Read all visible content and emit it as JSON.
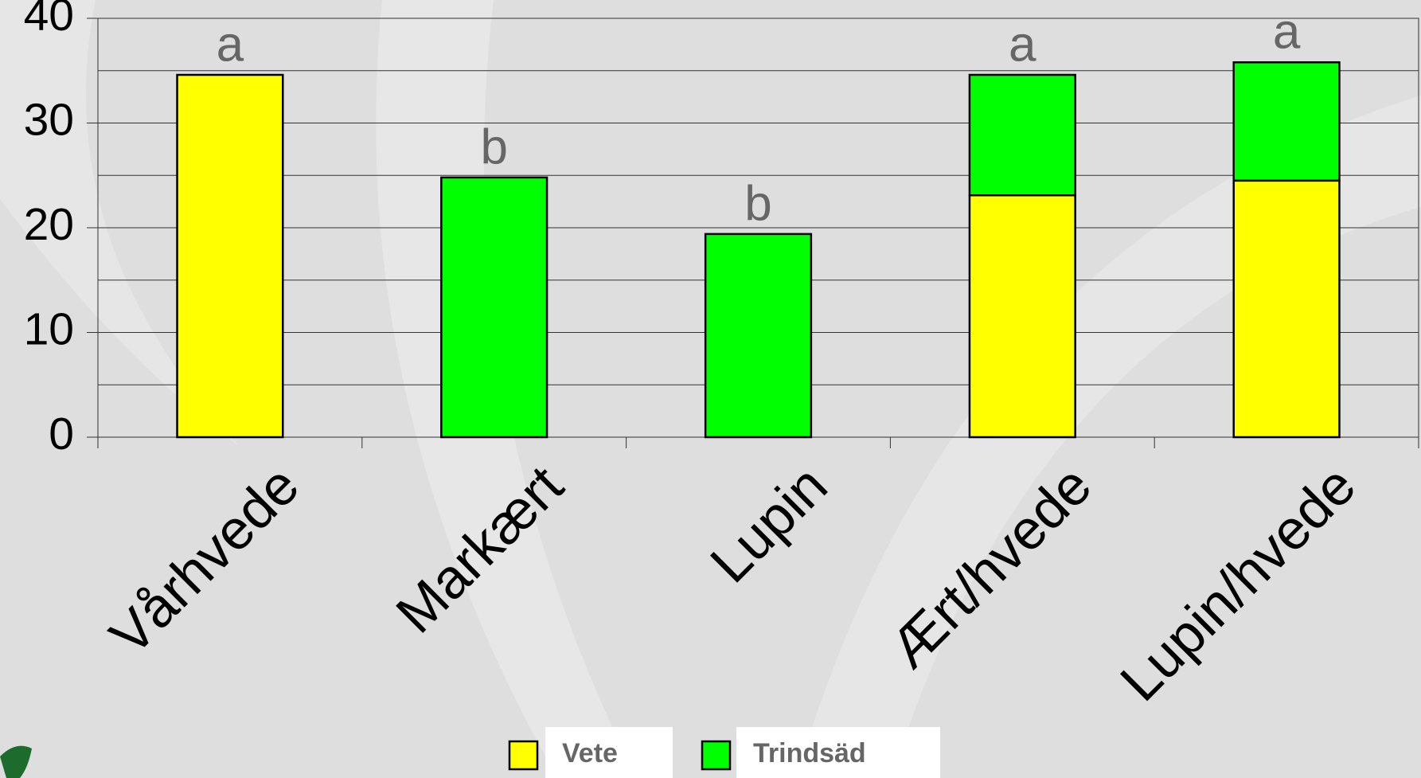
{
  "chart_data": {
    "type": "stacked_bar",
    "categories": [
      "Vårhvede",
      "Markært",
      "Lupin",
      "Ært/hvede",
      "Lupin/hvede"
    ],
    "series": [
      {
        "name": "Vete",
        "color": "#ffff00",
        "values": [
          34.6,
          null,
          null,
          23.1,
          24.5
        ]
      },
      {
        "name": "Trindsäd",
        "color": "#00ff00",
        "values": [
          null,
          24.8,
          19.4,
          11.5,
          11.3
        ]
      }
    ],
    "annotations": [
      "a",
      "b",
      "b",
      "a",
      "a"
    ],
    "ylim": [
      0,
      40
    ],
    "yticks": [
      0,
      10,
      20,
      30,
      40
    ],
    "minor_yticks": [
      5,
      15,
      25,
      35
    ],
    "grid": true,
    "legend": "bottom"
  }
}
